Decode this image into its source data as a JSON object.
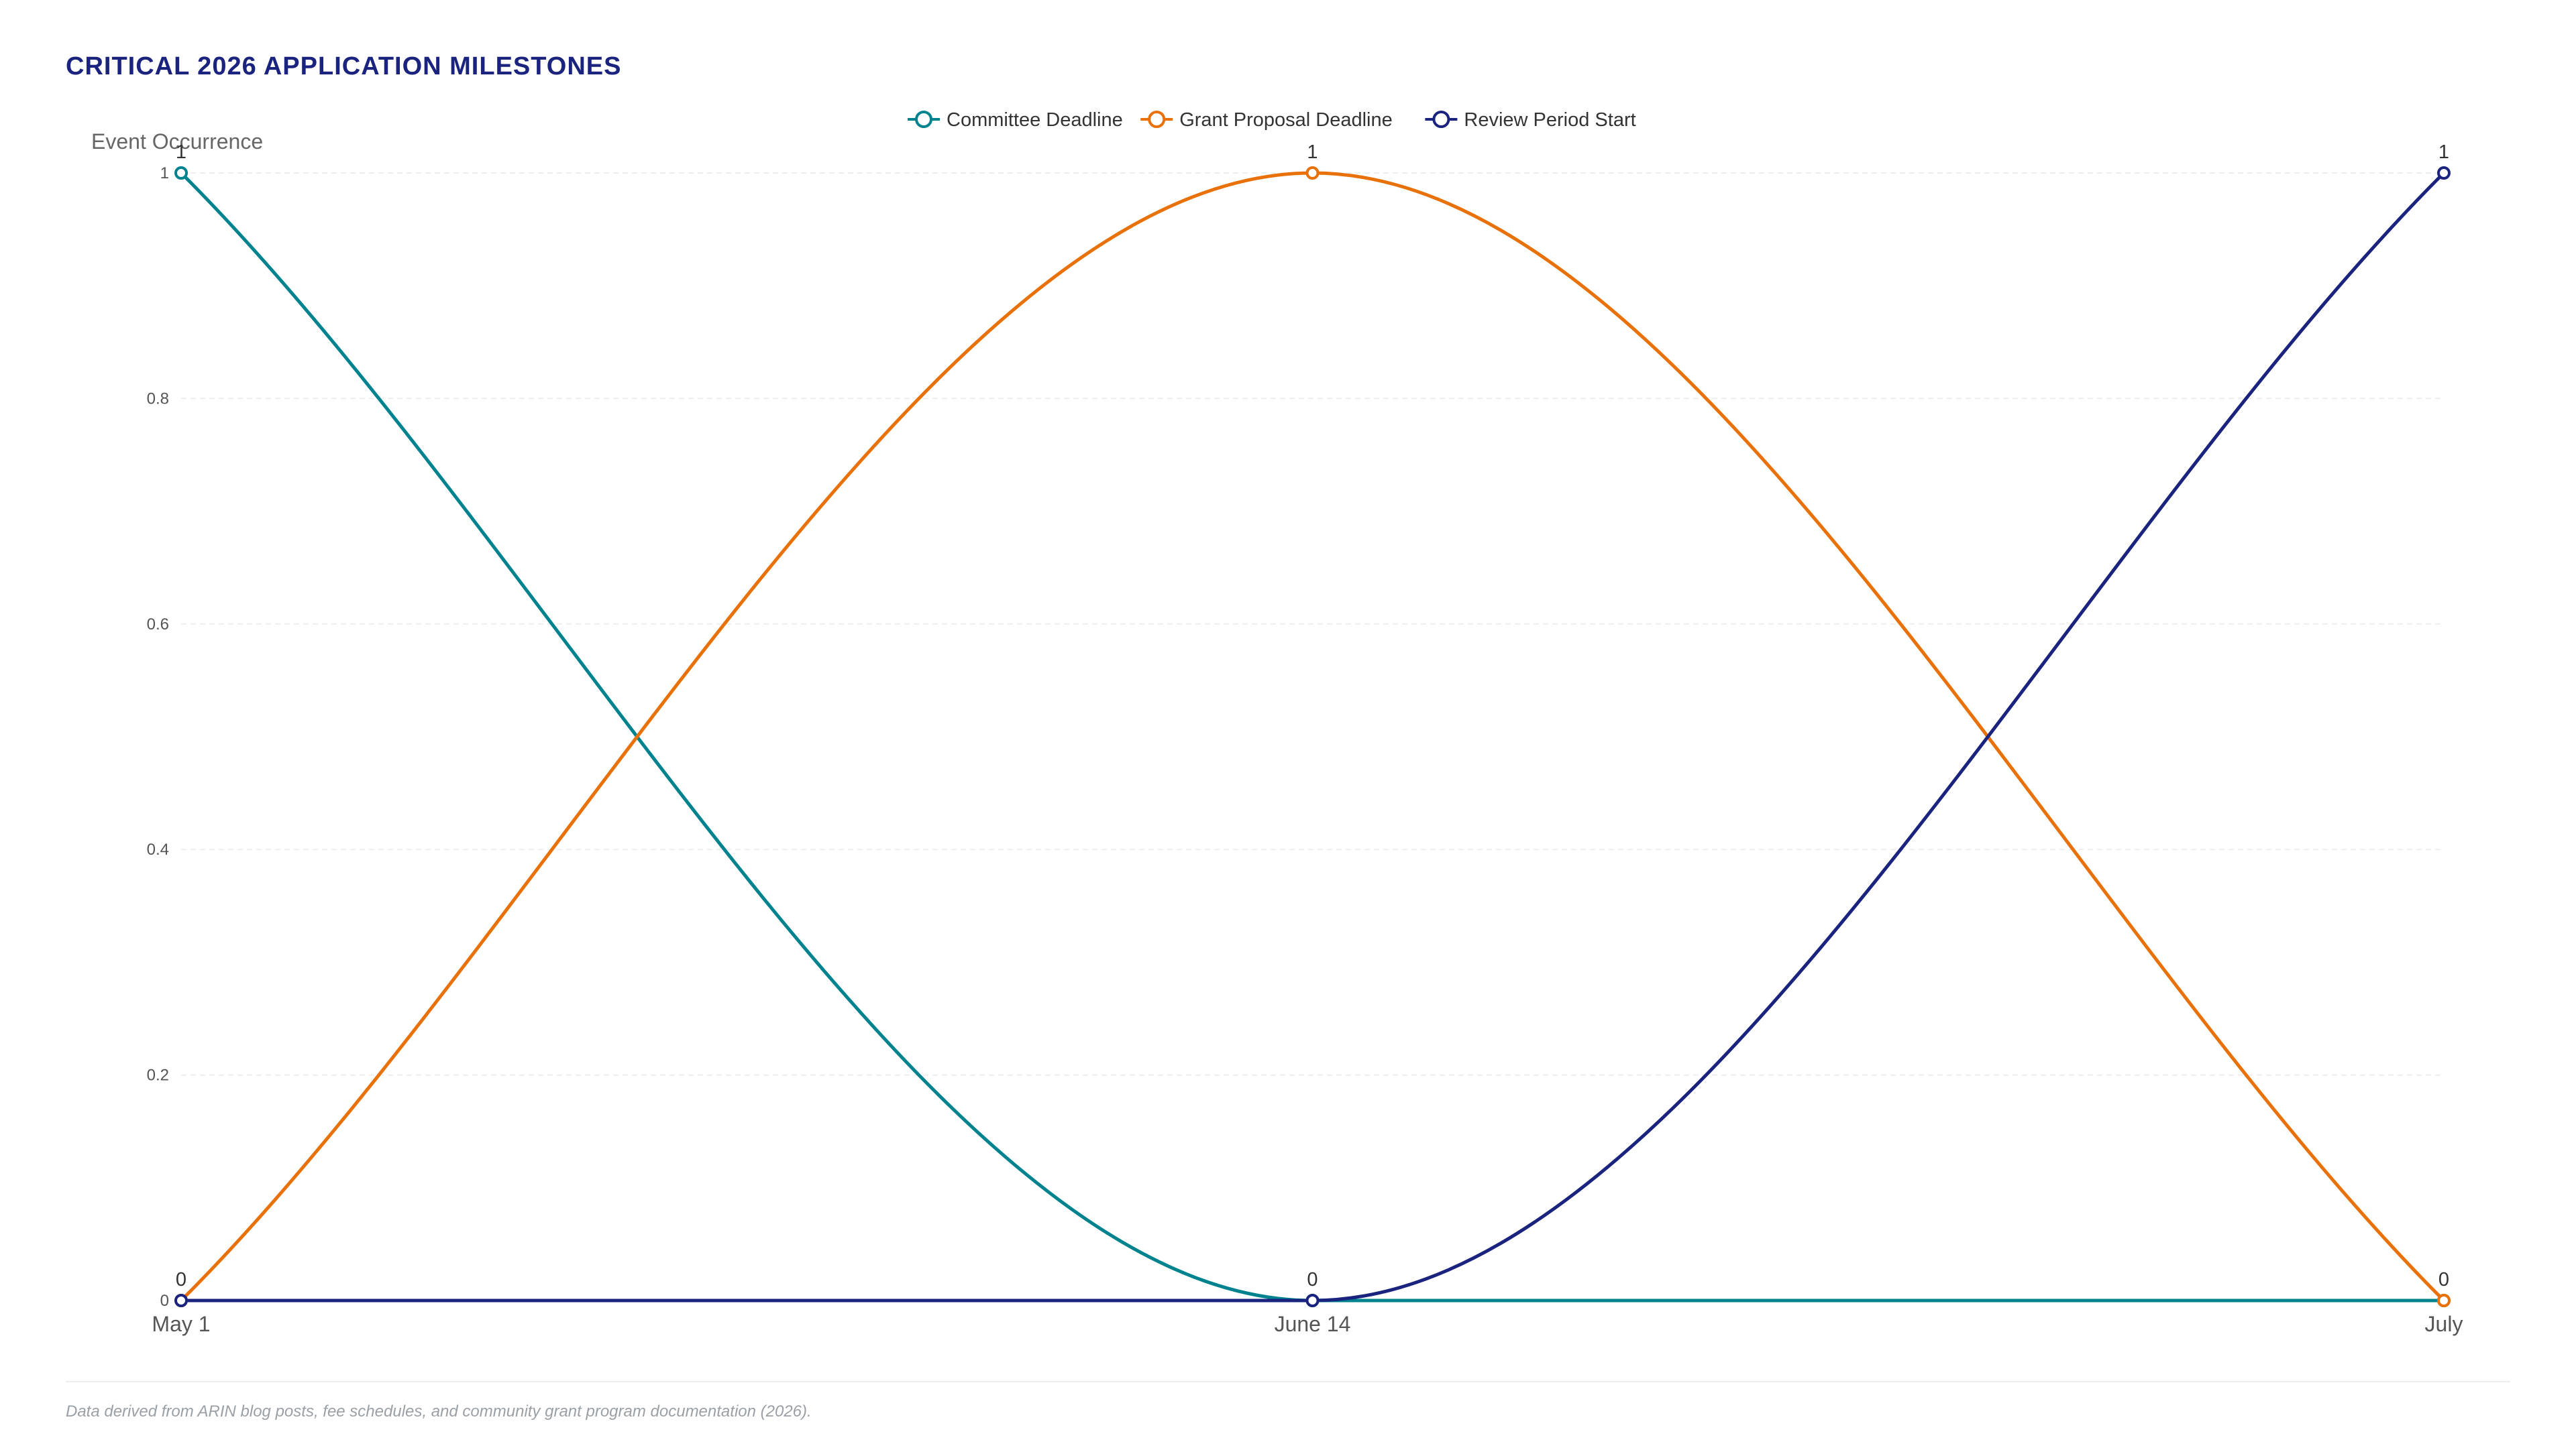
{
  "title": "CRITICAL 2026 APPLICATION MILESTONES",
  "footnote": "Data derived from ARIN blog posts, fee schedules, and community grant program documentation (2026).",
  "chart_data": {
    "type": "line",
    "title": "CRITICAL 2026 APPLICATION MILESTONES",
    "ylabel": "Event Occurrence",
    "xlabel": "",
    "categories": [
      "May 1",
      "June 14",
      "July"
    ],
    "ylim": [
      0,
      1
    ],
    "yticks": [
      0,
      0.2,
      0.4,
      0.6,
      0.8,
      1
    ],
    "grid": true,
    "legend_position": "top-center",
    "smooth": true,
    "series": [
      {
        "name": "Committee Deadline",
        "color": "#00838f",
        "values": [
          1,
          0,
          0
        ]
      },
      {
        "name": "Grant Proposal Deadline",
        "color": "#e8710a",
        "values": [
          0,
          1,
          0
        ]
      },
      {
        "name": "Review Period Start",
        "color": "#1a237e",
        "values": [
          0,
          0,
          1
        ]
      }
    ]
  }
}
